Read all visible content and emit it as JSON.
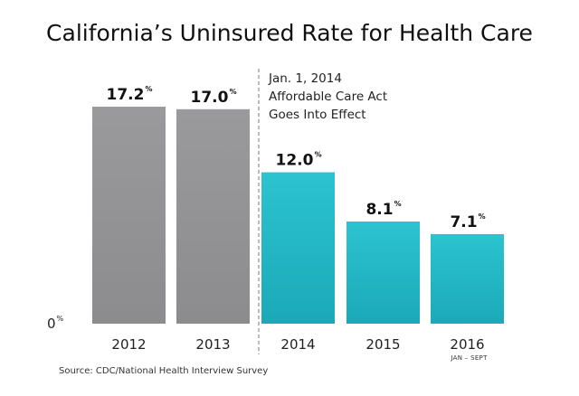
{
  "chart_data": {
    "type": "bar",
    "title": "California’s  Uninsured Rate for Health Care",
    "categories": [
      "2012",
      "2013",
      "2014",
      "2015",
      "2016"
    ],
    "category_sublabels": [
      "",
      "",
      "",
      "",
      "JAN – SEPT"
    ],
    "values": [
      17.2,
      17.0,
      12.0,
      8.1,
      7.1
    ],
    "value_labels": [
      "17.2",
      "17.0",
      "12.0",
      "8.1",
      "7.1"
    ],
    "value_suffix": "%",
    "y_zero_label": "0",
    "ylim": [
      0,
      20
    ],
    "grid": false,
    "xlabel": "",
    "ylabel": "",
    "colors": {
      "pre_aca": "#8c8c8e",
      "pre_aca_top": "#9a9a9c",
      "post_aca": "#1ba9b8",
      "post_aca_top": "#2cc3d0",
      "divider": "#777777"
    },
    "annotation": {
      "lines": [
        "Jan. 1, 2014",
        "Affordable Care Act",
        "Goes Into Effect"
      ]
    },
    "source": "Source:  CDC/National Health Interview Survey"
  }
}
